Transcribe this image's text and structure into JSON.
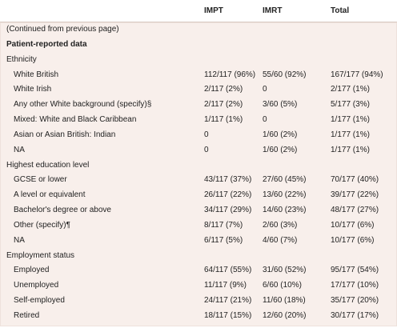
{
  "columns": [
    "IMPT",
    "IMRT",
    "Total"
  ],
  "continued": "(Continued from previous page)",
  "section": "Patient-reported data",
  "groups": [
    {
      "title": "Ethnicity",
      "rows": [
        {
          "label": "White British",
          "cells": [
            "112/117 (96%)",
            "55/60 (92%)",
            "167/177 (94%)"
          ]
        },
        {
          "label": "White Irish",
          "cells": [
            "2/117 (2%)",
            "0",
            "2/177 (1%)"
          ]
        },
        {
          "label": "Any other White background (specify)§",
          "cells": [
            "2/117 (2%)",
            "3/60 (5%)",
            "5/177 (3%)"
          ]
        },
        {
          "label": "Mixed: White and Black Caribbean",
          "cells": [
            "1/117 (1%)",
            "0",
            "1/177 (1%)"
          ]
        },
        {
          "label": "Asian or Asian British: Indian",
          "cells": [
            "0",
            "1/60 (2%)",
            "1/177 (1%)"
          ]
        },
        {
          "label": "NA",
          "cells": [
            "0",
            "1/60 (2%)",
            "1/177 (1%)"
          ]
        }
      ]
    },
    {
      "title": "Highest education level",
      "rows": [
        {
          "label": "GCSE or lower",
          "cells": [
            "43/117 (37%)",
            "27/60 (45%)",
            "70/177 (40%)"
          ]
        },
        {
          "label": "A level or equivalent",
          "cells": [
            "26/117 (22%)",
            "13/60 (22%)",
            "39/177 (22%)"
          ]
        },
        {
          "label": "Bachelor's degree or above",
          "cells": [
            "34/117 (29%)",
            "14/60 (23%)",
            "48/177 (27%)"
          ]
        },
        {
          "label": "Other (specify)¶",
          "cells": [
            "8/117 (7%)",
            "2/60 (3%)",
            "10/177 (6%)"
          ]
        },
        {
          "label": "NA",
          "cells": [
            "6/117 (5%)",
            "4/60 (7%)",
            "10/177 (6%)"
          ]
        }
      ]
    },
    {
      "title": "Employment status",
      "rows": [
        {
          "label": "Employed",
          "cells": [
            "64/117 (55%)",
            "31/60 (52%)",
            "95/177 (54%)"
          ]
        },
        {
          "label": "Unemployed",
          "cells": [
            "11/117 (9%)",
            "6/60 (10%)",
            "17/177 (10%)"
          ]
        },
        {
          "label": "Self-employed",
          "cells": [
            "24/117 (21%)",
            "11/60 (18%)",
            "35/177 (20%)"
          ]
        },
        {
          "label": "Retired",
          "cells": [
            "18/117 (15%)",
            "12/60 (20%)",
            "30/177 (17%)"
          ]
        }
      ]
    }
  ]
}
